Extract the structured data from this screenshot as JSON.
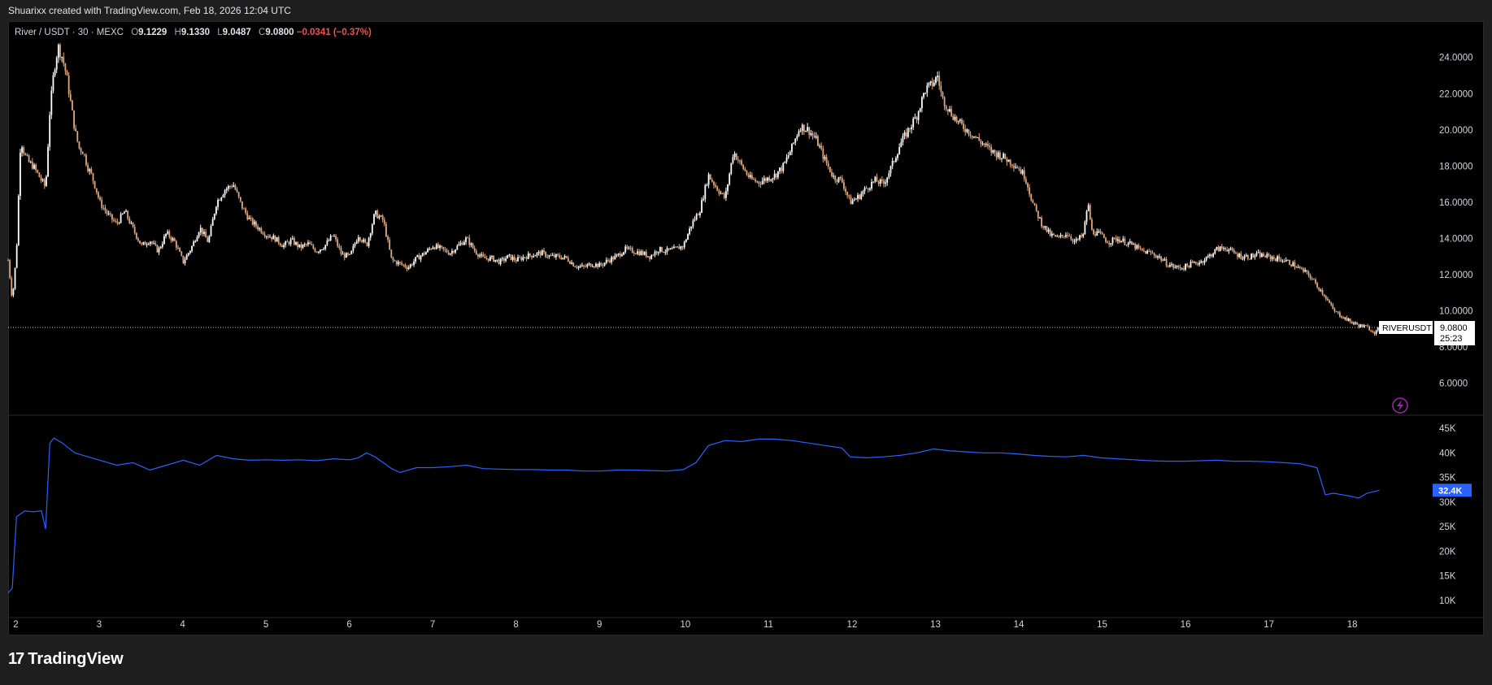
{
  "header": {
    "created_text": "Shuarixx created with TradingView.com, Feb 18, 2026 12:04 UTC"
  },
  "legend": {
    "symbol": "River / USDT · 30 · MEXC",
    "o_label": "O",
    "o_value": "9.1229",
    "h_label": "H",
    "h_value": "9.1330",
    "l_label": "L",
    "l_value": "9.0487",
    "c_label": "C",
    "c_value": "9.0800",
    "change": "−0.0341 (−0.37%)"
  },
  "price_label": {
    "ticker": "RIVERUSDT",
    "price": "9.0800",
    "countdown": "25:23"
  },
  "indicator_label": {
    "value": "32.4K"
  },
  "brand": {
    "logo": "17",
    "name": "TradingView"
  },
  "colors": {
    "up": "#ffffff",
    "down": "#e0a77d",
    "indicator": "#2962ff",
    "price_tag_bg": "#ffffff",
    "indicator_tag_bg": "#2962ff",
    "lightning": "#9c27b0"
  },
  "chart_data": [
    {
      "type": "candlestick",
      "title": "River / USDT · 30 · MEXC",
      "x_ticks": [
        "2",
        "3",
        "4",
        "5",
        "6",
        "7",
        "8",
        "9",
        "10",
        "11",
        "12",
        "13",
        "14",
        "15",
        "16",
        "17",
        "18"
      ],
      "y_ticks": [
        "6.0000",
        "8.0000",
        "10.0000",
        "12.0000",
        "14.0000",
        "16.0000",
        "18.0000",
        "20.0000",
        "22.0000",
        "24.0000"
      ],
      "ylim": [
        4.5,
        25.2
      ],
      "xlim": [
        1.9,
        18.5
      ],
      "last_price": 9.08,
      "close_path": [
        [
          1.9,
          12.8
        ],
        [
          1.95,
          10.6
        ],
        [
          2.0,
          13.2
        ],
        [
          2.05,
          19.5
        ],
        [
          2.1,
          18.6
        ],
        [
          2.15,
          18.2
        ],
        [
          2.2,
          18.0
        ],
        [
          2.25,
          17.6
        ],
        [
          2.3,
          17.2
        ],
        [
          2.35,
          16.8
        ],
        [
          2.4,
          21.0
        ],
        [
          2.45,
          23.3
        ],
        [
          2.5,
          24.6
        ],
        [
          2.55,
          24.0
        ],
        [
          2.6,
          23.0
        ],
        [
          2.65,
          21.5
        ],
        [
          2.7,
          20.0
        ],
        [
          2.75,
          19.0
        ],
        [
          2.8,
          18.8
        ],
        [
          2.85,
          18.0
        ],
        [
          2.9,
          17.5
        ],
        [
          2.95,
          16.8
        ],
        [
          3.0,
          16.0
        ],
        [
          3.1,
          15.3
        ],
        [
          3.2,
          14.8
        ],
        [
          3.3,
          15.5
        ],
        [
          3.4,
          14.5
        ],
        [
          3.5,
          13.6
        ],
        [
          3.6,
          13.9
        ],
        [
          3.7,
          13.3
        ],
        [
          3.8,
          14.3
        ],
        [
          3.9,
          13.8
        ],
        [
          4.0,
          12.7
        ],
        [
          4.1,
          13.5
        ],
        [
          4.2,
          14.6
        ],
        [
          4.3,
          13.8
        ],
        [
          4.4,
          16.0
        ],
        [
          4.5,
          16.7
        ],
        [
          4.6,
          17.0
        ],
        [
          4.7,
          15.8
        ],
        [
          4.8,
          15.0
        ],
        [
          4.9,
          14.6
        ],
        [
          5.0,
          14.2
        ],
        [
          5.1,
          14.0
        ],
        [
          5.2,
          13.6
        ],
        [
          5.3,
          13.9
        ],
        [
          5.4,
          13.5
        ],
        [
          5.5,
          13.7
        ],
        [
          5.6,
          13.3
        ],
        [
          5.7,
          13.6
        ],
        [
          5.8,
          14.2
        ],
        [
          5.9,
          13.1
        ],
        [
          6.0,
          13.0
        ],
        [
          6.1,
          14.2
        ],
        [
          6.2,
          13.6
        ],
        [
          6.3,
          15.4
        ],
        [
          6.4,
          15.0
        ],
        [
          6.5,
          12.8
        ],
        [
          6.6,
          12.6
        ],
        [
          6.7,
          12.4
        ],
        [
          6.8,
          12.9
        ],
        [
          6.9,
          13.2
        ],
        [
          7.0,
          13.6
        ],
        [
          7.1,
          13.4
        ],
        [
          7.2,
          13.2
        ],
        [
          7.3,
          13.6
        ],
        [
          7.4,
          14.0
        ],
        [
          7.5,
          13.3
        ],
        [
          7.6,
          12.9
        ],
        [
          7.7,
          12.9
        ],
        [
          7.8,
          12.7
        ],
        [
          7.9,
          13.0
        ],
        [
          8.0,
          12.8
        ],
        [
          8.1,
          13.0
        ],
        [
          8.2,
          13.1
        ],
        [
          8.3,
          13.2
        ],
        [
          8.4,
          13.0
        ],
        [
          8.5,
          13.0
        ],
        [
          8.6,
          12.9
        ],
        [
          8.7,
          12.5
        ],
        [
          8.8,
          12.4
        ],
        [
          8.9,
          12.6
        ],
        [
          9.0,
          12.5
        ],
        [
          9.1,
          12.8
        ],
        [
          9.2,
          13.0
        ],
        [
          9.3,
          13.4
        ],
        [
          9.4,
          13.3
        ],
        [
          9.5,
          13.2
        ],
        [
          9.6,
          13.0
        ],
        [
          9.7,
          13.4
        ],
        [
          9.8,
          13.3
        ],
        [
          9.9,
          13.4
        ],
        [
          10.0,
          13.6
        ],
        [
          10.1,
          14.8
        ],
        [
          10.2,
          15.6
        ],
        [
          10.3,
          17.5
        ],
        [
          10.4,
          16.8
        ],
        [
          10.5,
          16.2
        ],
        [
          10.6,
          18.8
        ],
        [
          10.7,
          18.0
        ],
        [
          10.8,
          17.3
        ],
        [
          10.9,
          17.1
        ],
        [
          11.0,
          17.3
        ],
        [
          11.1,
          17.5
        ],
        [
          11.2,
          18.0
        ],
        [
          11.3,
          19.0
        ],
        [
          11.4,
          20.2
        ],
        [
          11.5,
          20.0
        ],
        [
          11.6,
          19.4
        ],
        [
          11.7,
          18.3
        ],
        [
          11.8,
          17.4
        ],
        [
          11.9,
          17.2
        ],
        [
          12.0,
          16.0
        ],
        [
          12.1,
          16.3
        ],
        [
          12.2,
          16.8
        ],
        [
          12.3,
          17.2
        ],
        [
          12.4,
          17.0
        ],
        [
          12.5,
          18.0
        ],
        [
          12.6,
          19.2
        ],
        [
          12.7,
          20.0
        ],
        [
          12.8,
          20.8
        ],
        [
          12.9,
          22.2
        ],
        [
          13.0,
          22.6
        ],
        [
          13.05,
          23.0
        ],
        [
          13.1,
          21.8
        ],
        [
          13.2,
          21.0
        ],
        [
          13.3,
          20.4
        ],
        [
          13.4,
          20.0
        ],
        [
          13.5,
          19.6
        ],
        [
          13.6,
          19.2
        ],
        [
          13.7,
          18.8
        ],
        [
          13.8,
          18.6
        ],
        [
          13.9,
          18.3
        ],
        [
          14.0,
          18.0
        ],
        [
          14.1,
          17.4
        ],
        [
          14.2,
          15.8
        ],
        [
          14.3,
          14.8
        ],
        [
          14.4,
          14.2
        ],
        [
          14.5,
          14.0
        ],
        [
          14.6,
          14.3
        ],
        [
          14.7,
          13.8
        ],
        [
          14.8,
          14.2
        ],
        [
          14.85,
          16.0
        ],
        [
          14.9,
          14.4
        ],
        [
          15.0,
          14.2
        ],
        [
          15.1,
          13.8
        ],
        [
          15.2,
          14.0
        ],
        [
          15.3,
          13.8
        ],
        [
          15.4,
          13.6
        ],
        [
          15.5,
          13.3
        ],
        [
          15.6,
          13.2
        ],
        [
          15.7,
          13.0
        ],
        [
          15.8,
          12.6
        ],
        [
          15.9,
          12.4
        ],
        [
          16.0,
          12.4
        ],
        [
          16.1,
          12.6
        ],
        [
          16.2,
          12.7
        ],
        [
          16.3,
          13.0
        ],
        [
          16.4,
          13.4
        ],
        [
          16.5,
          13.5
        ],
        [
          16.6,
          13.2
        ],
        [
          16.7,
          13.0
        ],
        [
          16.8,
          13.0
        ],
        [
          16.9,
          13.1
        ],
        [
          17.0,
          13.0
        ],
        [
          17.1,
          12.9
        ],
        [
          17.2,
          12.8
        ],
        [
          17.3,
          12.6
        ],
        [
          17.4,
          12.3
        ],
        [
          17.5,
          12.0
        ],
        [
          17.6,
          11.4
        ],
        [
          17.7,
          10.8
        ],
        [
          17.8,
          10.0
        ],
        [
          17.9,
          9.7
        ],
        [
          18.0,
          9.4
        ],
        [
          18.1,
          9.2
        ],
        [
          18.2,
          9.1
        ],
        [
          18.3,
          8.8
        ],
        [
          18.35,
          9.08
        ]
      ]
    },
    {
      "type": "line",
      "y_ticks": [
        "10K",
        "15K",
        "20K",
        "25K",
        "30K",
        "35K",
        "40K",
        "45K"
      ],
      "ylim": [
        6.5,
        47
      ],
      "last_value": 32.4,
      "points": [
        [
          1.9,
          11.5
        ],
        [
          1.95,
          12.5
        ],
        [
          2.0,
          27.0
        ],
        [
          2.1,
          28.2
        ],
        [
          2.2,
          28.0
        ],
        [
          2.3,
          28.2
        ],
        [
          2.35,
          24.5
        ],
        [
          2.4,
          42.0
        ],
        [
          2.45,
          43.0
        ],
        [
          2.55,
          42.0
        ],
        [
          2.7,
          40.0
        ],
        [
          2.8,
          39.5
        ],
        [
          3.0,
          38.5
        ],
        [
          3.2,
          37.5
        ],
        [
          3.4,
          38.0
        ],
        [
          3.6,
          36.5
        ],
        [
          3.8,
          37.5
        ],
        [
          4.0,
          38.5
        ],
        [
          4.2,
          37.5
        ],
        [
          4.4,
          39.5
        ],
        [
          4.6,
          38.8
        ],
        [
          4.8,
          38.5
        ],
        [
          5.0,
          38.6
        ],
        [
          5.2,
          38.5
        ],
        [
          5.4,
          38.6
        ],
        [
          5.6,
          38.4
        ],
        [
          5.8,
          38.8
        ],
        [
          6.0,
          38.6
        ],
        [
          6.1,
          39.0
        ],
        [
          6.2,
          40.0
        ],
        [
          6.3,
          39.2
        ],
        [
          6.4,
          38.0
        ],
        [
          6.5,
          36.8
        ],
        [
          6.6,
          36.0
        ],
        [
          6.8,
          37.0
        ],
        [
          7.0,
          37.0
        ],
        [
          7.2,
          37.2
        ],
        [
          7.4,
          37.5
        ],
        [
          7.6,
          36.8
        ],
        [
          7.8,
          36.7
        ],
        [
          8.0,
          36.6
        ],
        [
          8.2,
          36.6
        ],
        [
          8.4,
          36.5
        ],
        [
          8.6,
          36.5
        ],
        [
          8.8,
          36.3
        ],
        [
          9.0,
          36.3
        ],
        [
          9.2,
          36.5
        ],
        [
          9.4,
          36.5
        ],
        [
          9.6,
          36.4
        ],
        [
          9.8,
          36.3
        ],
        [
          10.0,
          36.6
        ],
        [
          10.15,
          38.0
        ],
        [
          10.3,
          41.5
        ],
        [
          10.5,
          42.5
        ],
        [
          10.7,
          42.3
        ],
        [
          10.9,
          42.8
        ],
        [
          11.1,
          42.8
        ],
        [
          11.3,
          42.5
        ],
        [
          11.5,
          42.0
        ],
        [
          11.7,
          41.5
        ],
        [
          11.9,
          41.0
        ],
        [
          12.0,
          39.2
        ],
        [
          12.2,
          39.0
        ],
        [
          12.4,
          39.2
        ],
        [
          12.6,
          39.5
        ],
        [
          12.8,
          40.0
        ],
        [
          13.0,
          40.8
        ],
        [
          13.2,
          40.4
        ],
        [
          13.4,
          40.2
        ],
        [
          13.6,
          40.0
        ],
        [
          13.8,
          40.0
        ],
        [
          14.0,
          39.8
        ],
        [
          14.2,
          39.5
        ],
        [
          14.4,
          39.3
        ],
        [
          14.6,
          39.2
        ],
        [
          14.8,
          39.5
        ],
        [
          15.0,
          39.0
        ],
        [
          15.2,
          38.8
        ],
        [
          15.4,
          38.6
        ],
        [
          15.6,
          38.4
        ],
        [
          15.8,
          38.3
        ],
        [
          16.0,
          38.3
        ],
        [
          16.2,
          38.4
        ],
        [
          16.4,
          38.5
        ],
        [
          16.6,
          38.3
        ],
        [
          16.8,
          38.3
        ],
        [
          17.0,
          38.2
        ],
        [
          17.2,
          38.0
        ],
        [
          17.4,
          37.8
        ],
        [
          17.6,
          37.0
        ],
        [
          17.7,
          31.5
        ],
        [
          17.8,
          31.8
        ],
        [
          18.0,
          31.2
        ],
        [
          18.1,
          30.8
        ],
        [
          18.2,
          31.8
        ],
        [
          18.35,
          32.4
        ]
      ]
    }
  ]
}
